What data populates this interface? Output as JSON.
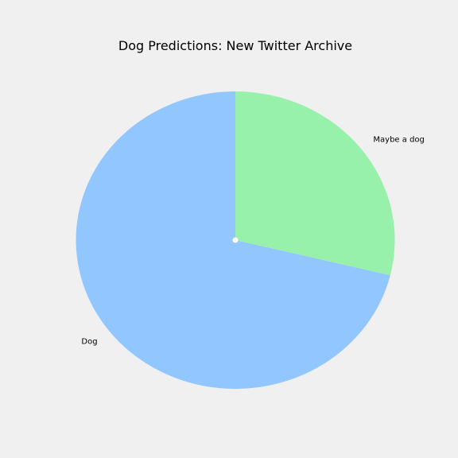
{
  "chart_data": {
    "type": "pie",
    "title": "Dog Predictions: New Twitter Archive",
    "slices": [
      {
        "label": "Maybe a dog",
        "value": 28.8,
        "color": "#98f1ab"
      },
      {
        "label": "Dog",
        "value": 71.2,
        "color": "#92c6ff"
      }
    ],
    "start_angle_deg": 90,
    "direction": "clockwise",
    "legend": "none"
  },
  "colors": {
    "background": "#f0f0f0",
    "center_dot": "#ffffff"
  }
}
